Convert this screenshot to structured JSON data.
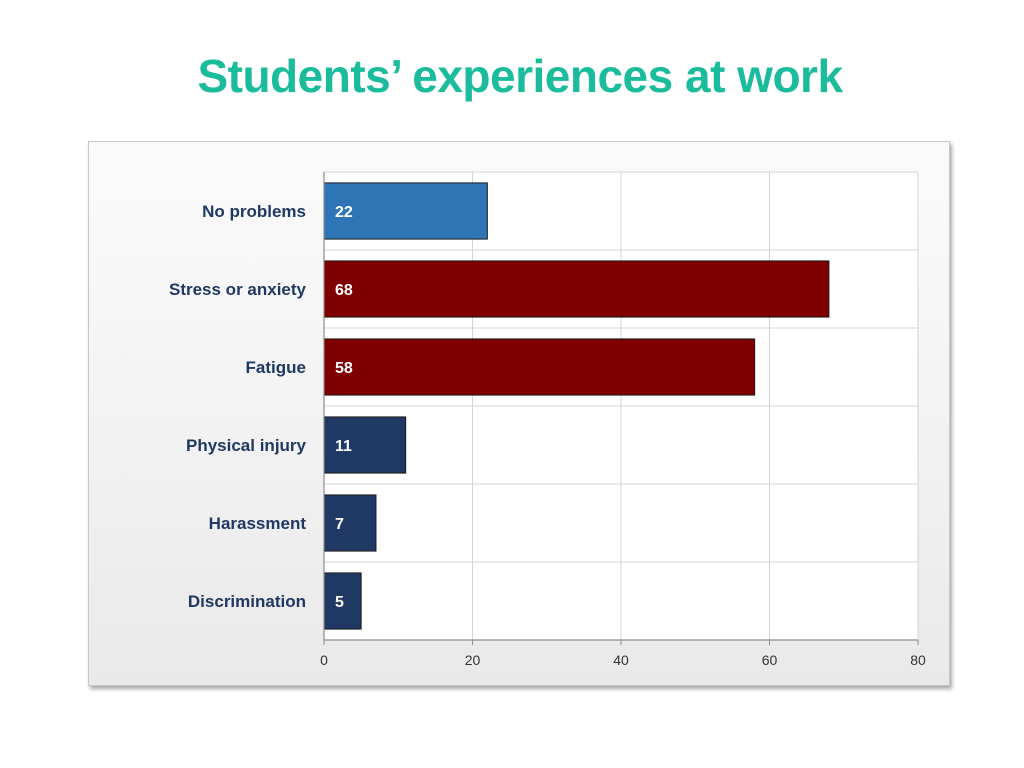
{
  "slide": {
    "title": "Students’ experiences at work",
    "title_color": "#1abc9c"
  },
  "chart_data": {
    "type": "bar",
    "orientation": "horizontal",
    "title": "",
    "xlabel": "",
    "ylabel": "",
    "categories": [
      "No problems",
      "Stress or anxiety",
      "Fatigue",
      "Physical injury",
      "Harassment",
      "Discrimination"
    ],
    "values": [
      22,
      68,
      58,
      11,
      7,
      5
    ],
    "bar_colors": [
      "#2e75b6",
      "#7f0000",
      "#7f0000",
      "#1f3864",
      "#1f3864",
      "#1f3864"
    ],
    "xlim": [
      0,
      80
    ],
    "x_ticks": [
      0,
      20,
      40,
      60,
      80
    ],
    "grid": true,
    "legend": "none",
    "data_labels": true
  }
}
